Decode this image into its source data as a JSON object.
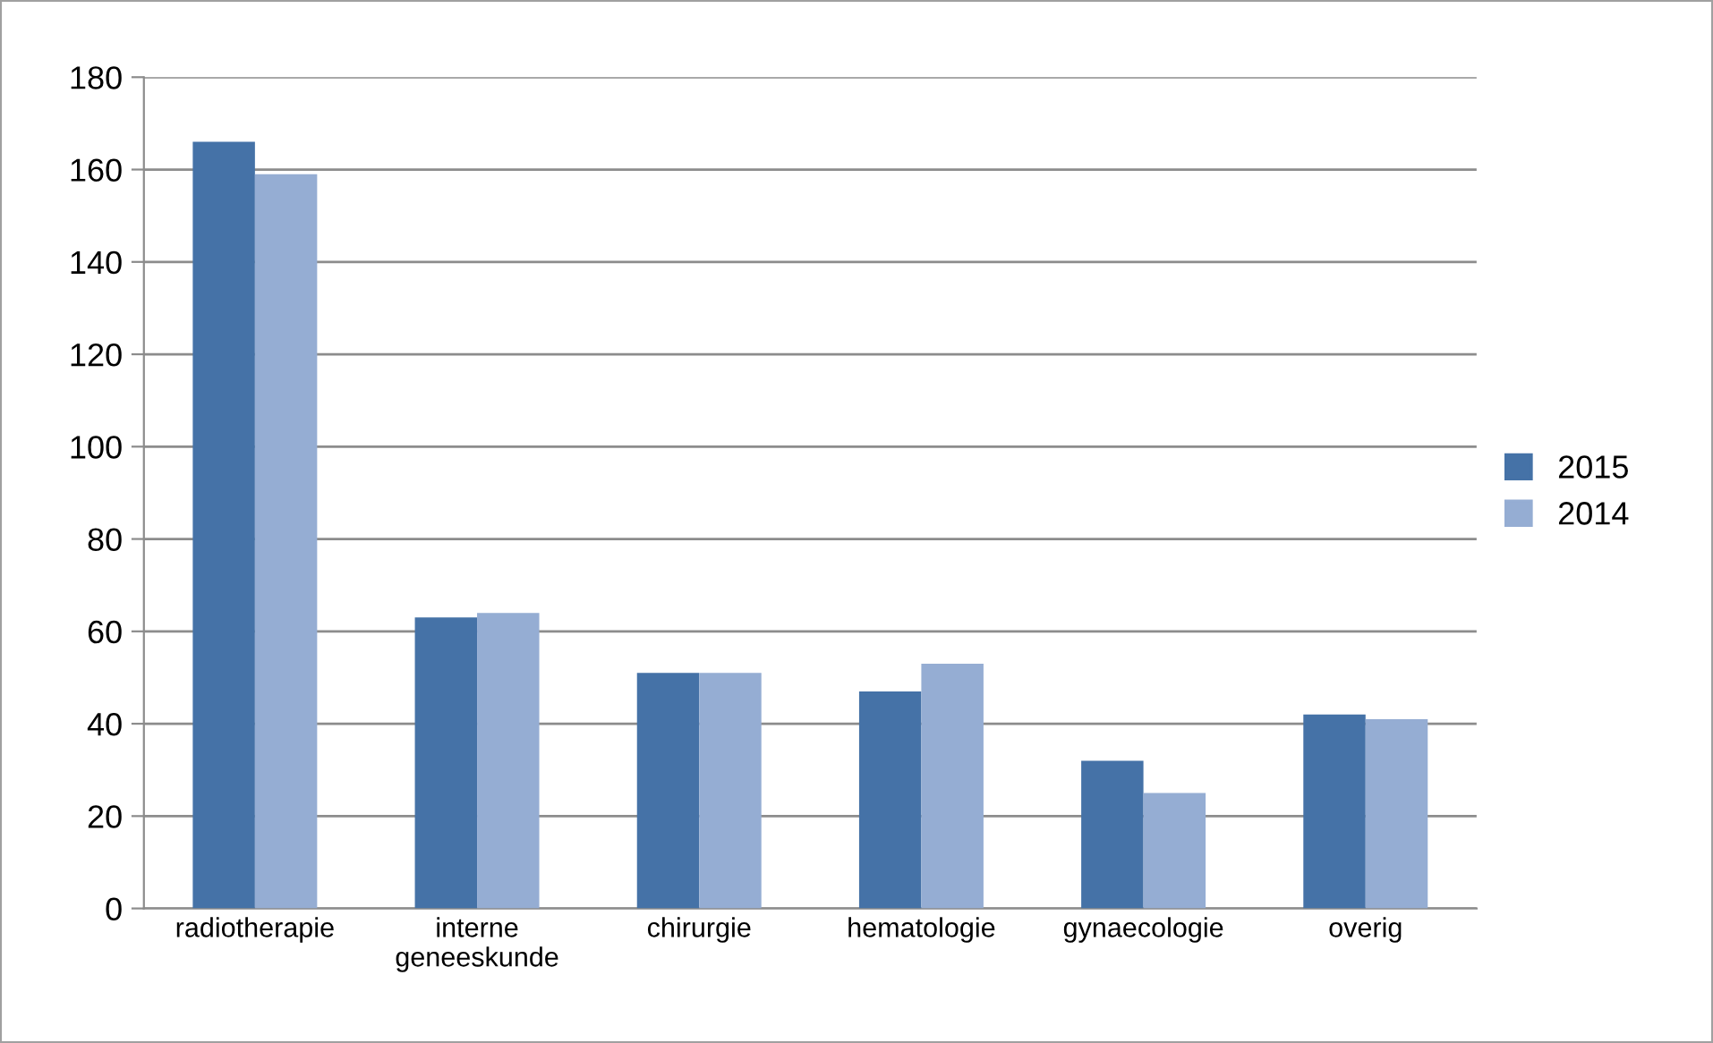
{
  "chart_data": {
    "type": "bar",
    "categories": [
      "radiotherapie",
      "interne geneeskunde",
      "chirurgie",
      "hematologie",
      "gynaecologie",
      "overig"
    ],
    "series": [
      {
        "name": "2015",
        "color": "#4572a7",
        "values": [
          166,
          63,
          51,
          47,
          32,
          42
        ]
      },
      {
        "name": "2014",
        "color": "#95add3",
        "values": [
          159,
          64,
          51,
          53,
          25,
          41
        ]
      }
    ],
    "ylim": [
      0,
      180
    ],
    "yticks": [
      0,
      20,
      40,
      60,
      80,
      100,
      120,
      140,
      160,
      180
    ],
    "grid": "y",
    "legend": "right"
  }
}
